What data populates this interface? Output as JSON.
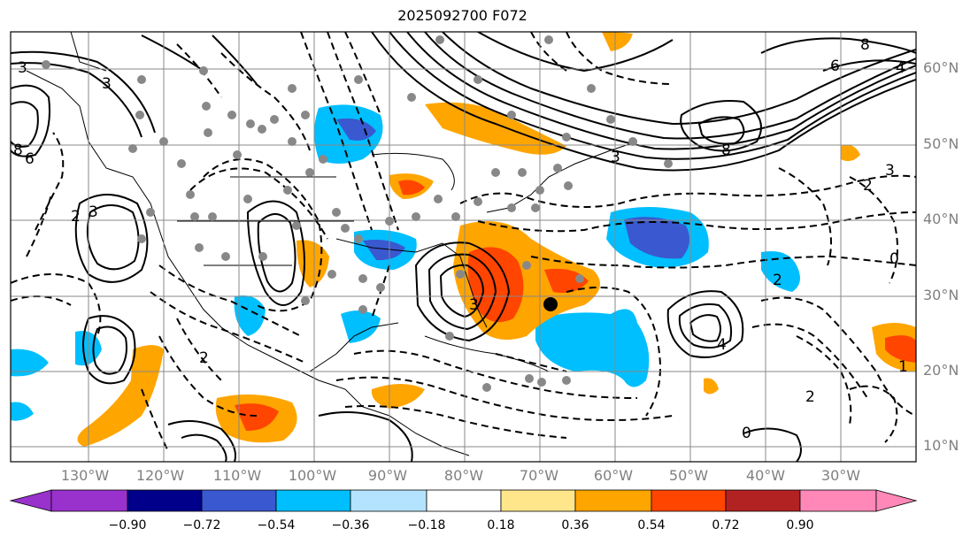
{
  "title": "2025092700 F072",
  "lat_labels": [
    "60°N",
    "50°N",
    "40°N",
    "30°N",
    "20°N",
    "10°N"
  ],
  "lon_labels": [
    "130°W",
    "120°W",
    "110°W",
    "100°W",
    "90°W",
    "80°W",
    "70°W",
    "60°W",
    "50°W",
    "40°W",
    "30°W"
  ],
  "colorbar": {
    "labels": [
      "−0.90",
      "−0.72",
      "−0.54",
      "−0.36",
      "−0.18",
      "0.18",
      "0.36",
      "0.54",
      "0.72",
      "0.90"
    ],
    "colors": [
      "#9932cc",
      "#00008b",
      "#3a58d0",
      "#00bfff",
      "#b3e3ff",
      "#ffffff",
      "#ffe68a",
      "#ffa500",
      "#ff4500",
      "#b22222",
      "#ff88b8"
    ]
  },
  "contour_labels": [
    "3",
    "8",
    "6",
    "4",
    "3",
    "8",
    "2",
    "3",
    "0",
    "2",
    "2",
    "4",
    "3",
    "6",
    "8",
    "3",
    "2",
    "3",
    "0",
    "2",
    "1"
  ]
}
